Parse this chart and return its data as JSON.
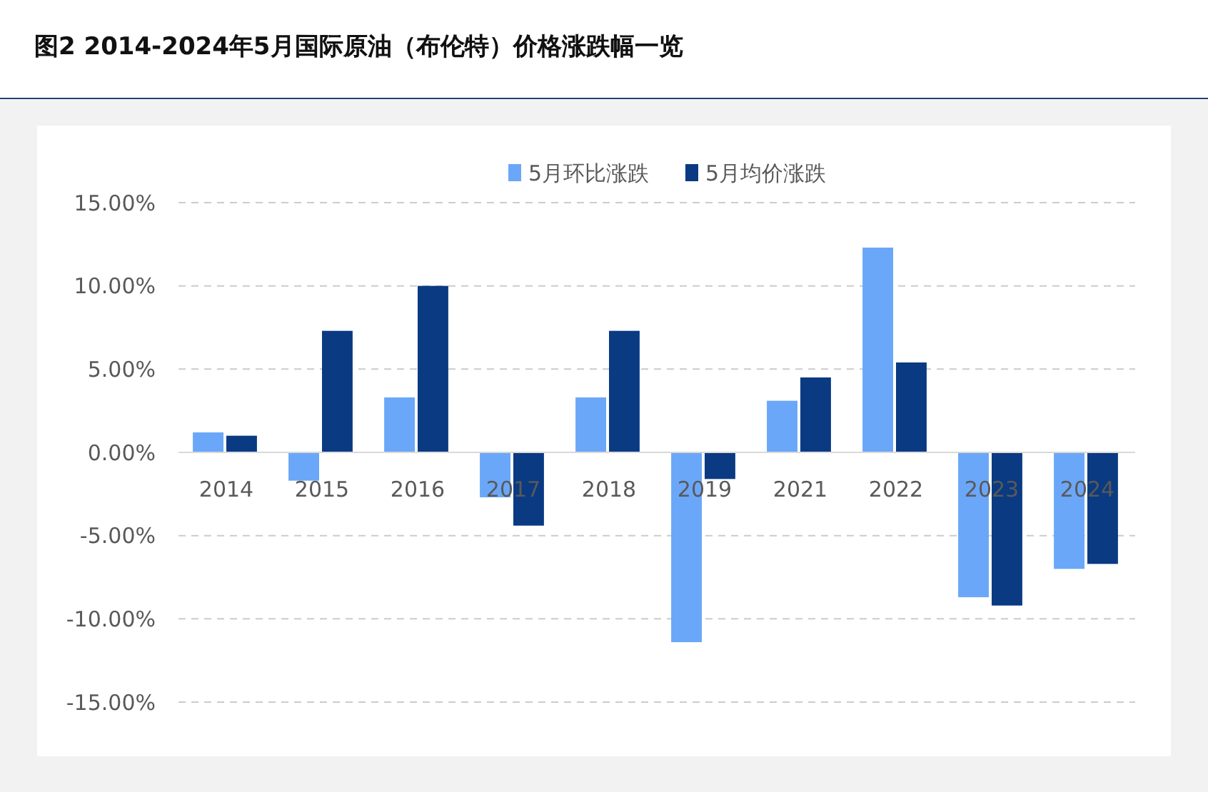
{
  "chart_data": {
    "type": "bar",
    "title": "图2 2014-2024年5月国际原油（布伦特）价格涨跌幅一览",
    "categories": [
      "2014",
      "2015",
      "2016",
      "2017",
      "2018",
      "2019",
      "2021",
      "2022",
      "2023",
      "2024"
    ],
    "series": [
      {
        "name": "5月环比涨跌",
        "color": "#6aa7f8",
        "values": [
          1.2,
          -1.7,
          3.3,
          -2.7,
          3.3,
          -11.4,
          3.1,
          12.3,
          -8.7,
          -7.0
        ]
      },
      {
        "name": "5月均价涨跌",
        "color": "#0a3a82",
        "values": [
          1.0,
          7.3,
          10.0,
          -4.4,
          7.3,
          -1.6,
          4.5,
          5.4,
          -9.2,
          -6.7
        ]
      }
    ],
    "ylim": [
      -15,
      15
    ],
    "yticks": [
      {
        "value": -15,
        "label": "-15.00%"
      },
      {
        "value": -10,
        "label": "-10.00%"
      },
      {
        "value": -5,
        "label": "-5.00%"
      },
      {
        "value": 0,
        "label": "0.00%"
      },
      {
        "value": 5,
        "label": "5.00%"
      },
      {
        "value": 10,
        "label": "10.00%"
      },
      {
        "value": 15,
        "label": "15.00%"
      }
    ],
    "grid": "y",
    "legend": "top"
  }
}
